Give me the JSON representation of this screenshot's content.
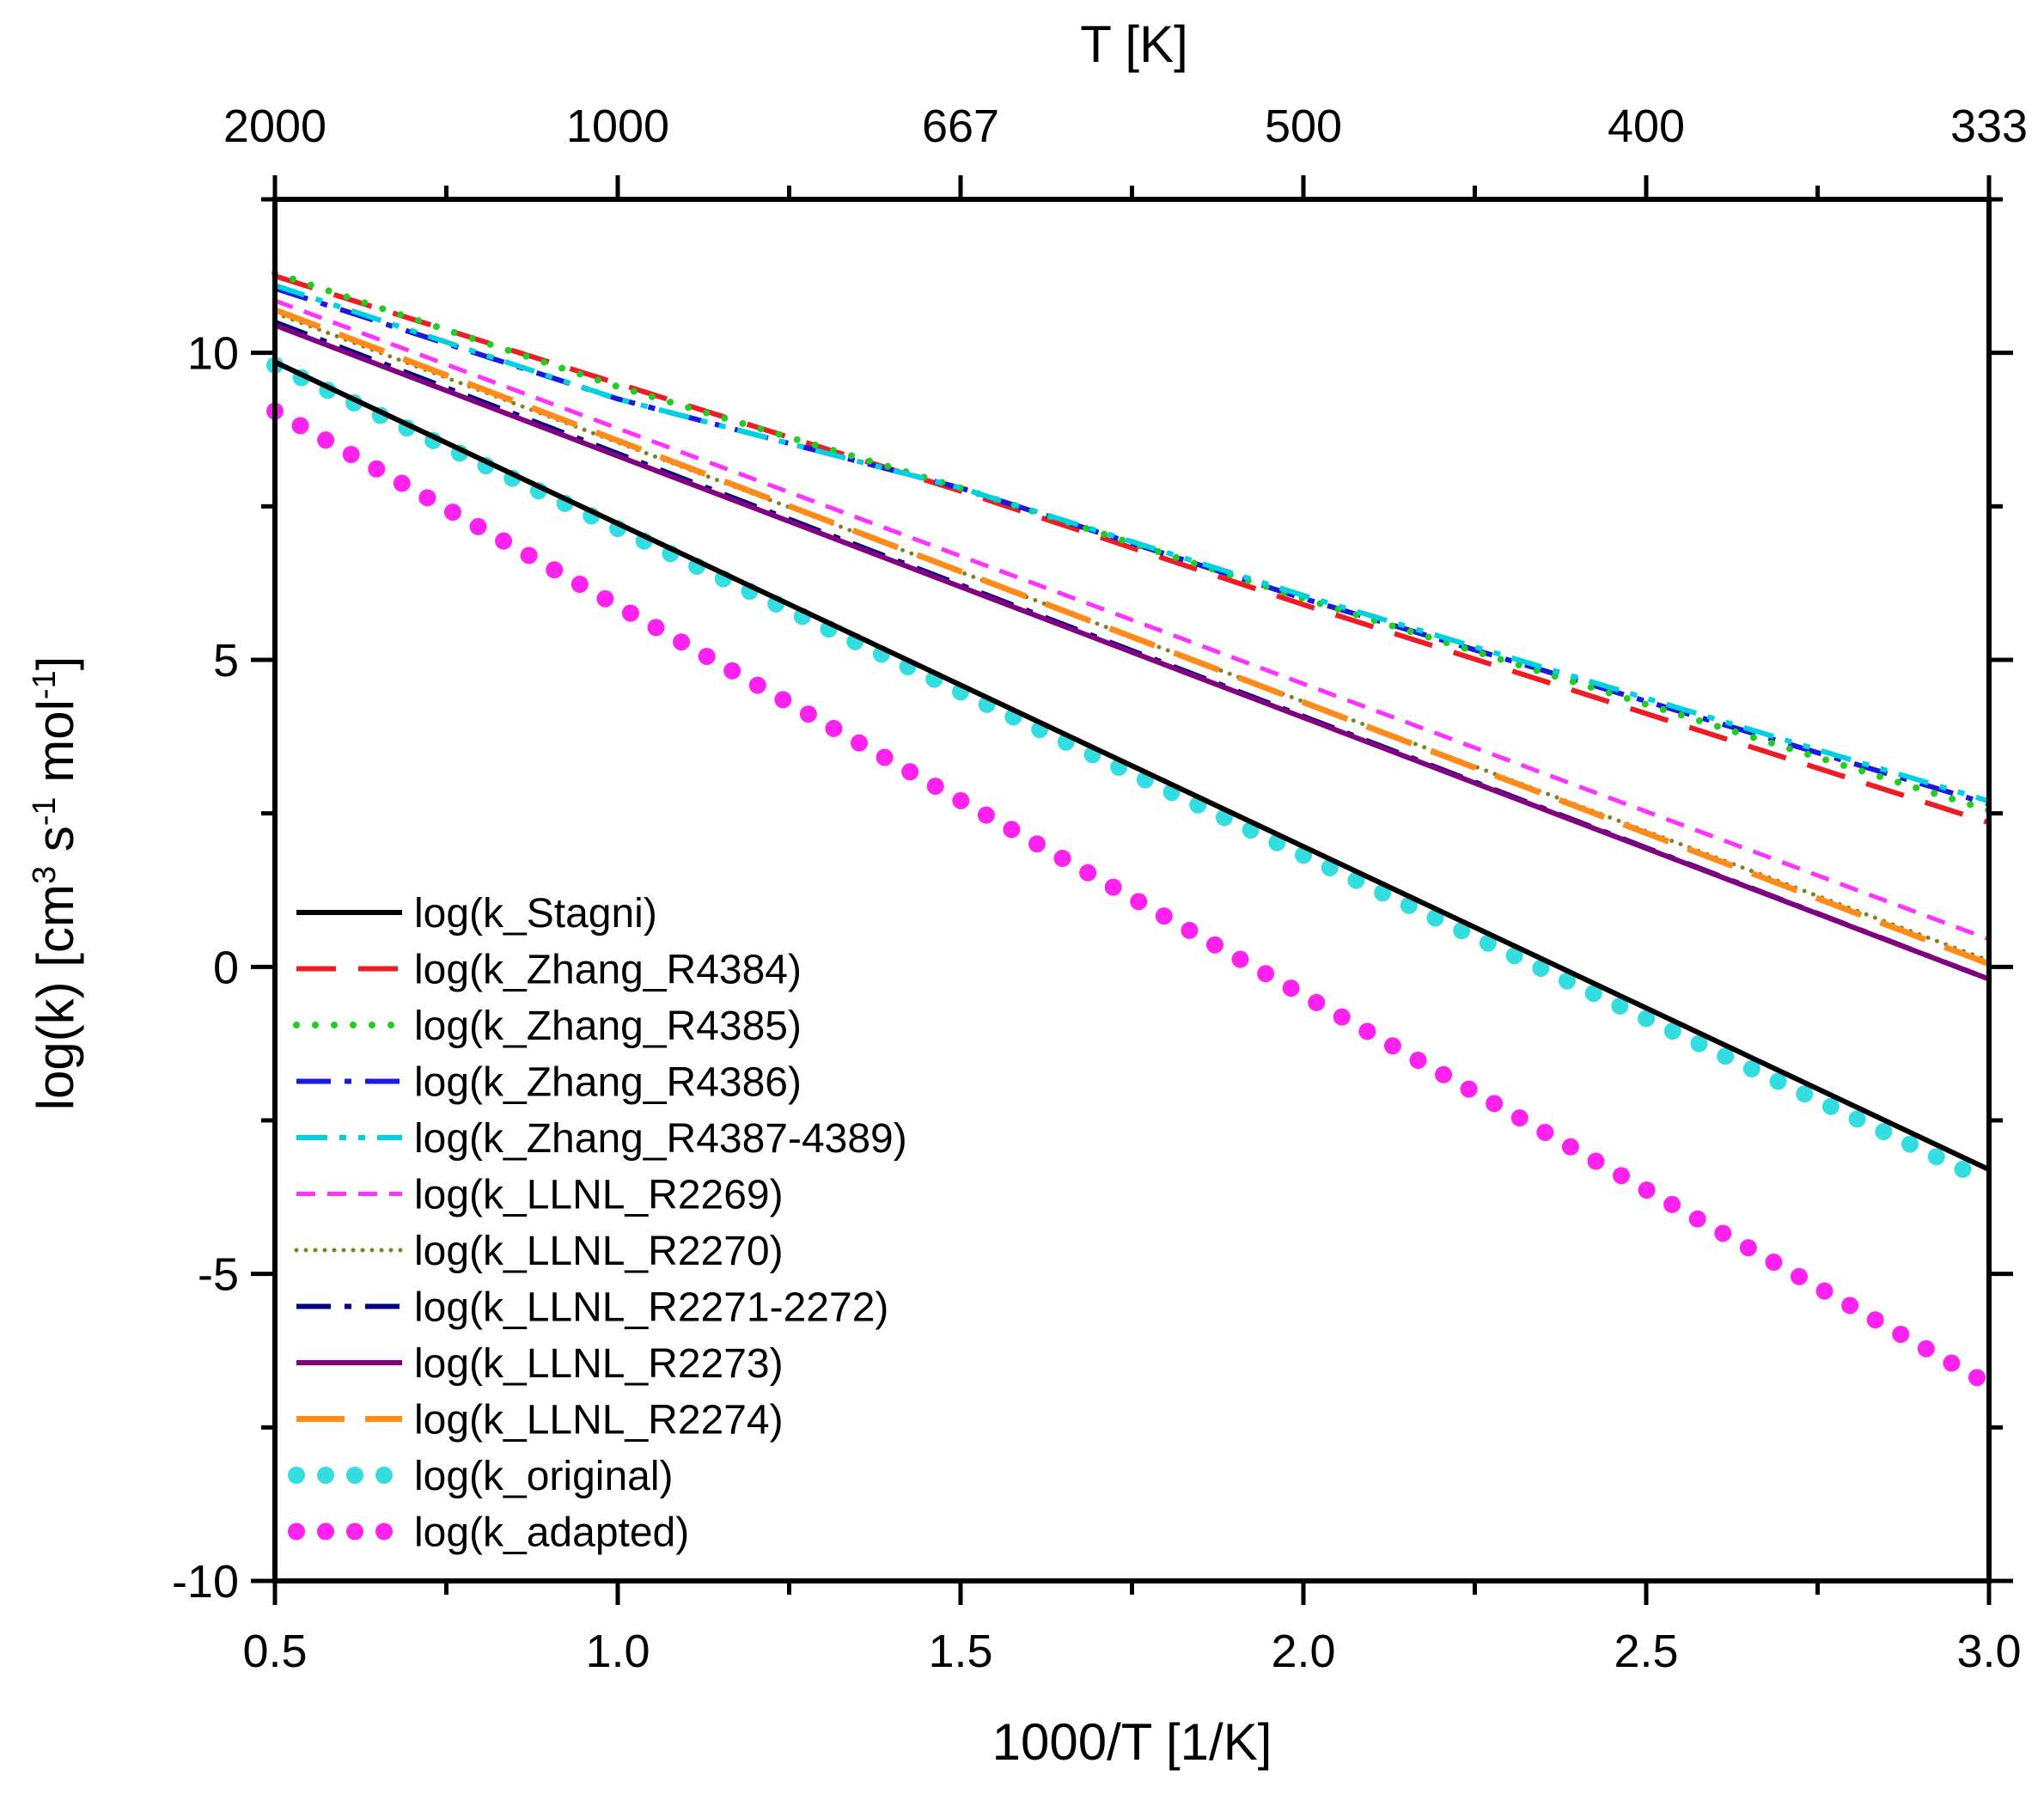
{
  "chart_data": {
    "type": "line",
    "title": "",
    "xlabel": "1000/T [1/K]",
    "ylabel": "log(k) [cm³ s⁻¹ mol⁻¹]",
    "ylabel_parts": {
      "base": "log(k) [cm",
      "exp1": "3",
      "mid1": " s",
      "exp2": "-1",
      "mid2": " mol",
      "exp3": "-1",
      "end": "]"
    },
    "top_xlabel": "T [K]",
    "xlim": [
      0.5,
      3.0
    ],
    "ylim": [
      -10,
      12.5
    ],
    "x_ticks": [
      0.5,
      1.0,
      1.5,
      2.0,
      2.5,
      3.0
    ],
    "x_tick_labels": [
      "0.5",
      "1.0",
      "1.5",
      "2.0",
      "2.5",
      "3.0"
    ],
    "y_ticks": [
      -10,
      -5,
      0,
      5,
      10
    ],
    "y_tick_labels": [
      "-10",
      "-5",
      "0",
      "5",
      "10"
    ],
    "top_ticks": [
      0.5,
      1.0,
      1.5,
      2.0,
      2.5,
      3.0
    ],
    "top_tick_labels": [
      "2000",
      "1000",
      "667",
      "500",
      "400",
      "333"
    ],
    "grid": false,
    "legend_position": "lower-left",
    "series": [
      {
        "name": "log(k_Stagni)",
        "color": "#000000",
        "style": "solid",
        "x": [
          0.5,
          3.0
        ],
        "y": [
          9.85,
          -3.3
        ]
      },
      {
        "name": "log(k_Zhang_R4384)",
        "color": "#ee1c24",
        "style": "dash",
        "x": [
          0.5,
          1.5,
          2.0,
          3.0
        ],
        "y": [
          11.25,
          7.75,
          5.9,
          2.35
        ]
      },
      {
        "name": "log(k_Zhang_R4385)",
        "color": "#22cc22",
        "style": "dot",
        "x": [
          0.5,
          1.0,
          1.5,
          2.0,
          3.0
        ],
        "y": [
          11.3,
          9.45,
          7.8,
          6.0,
          2.55
        ]
      },
      {
        "name": "log(k_Zhang_R4386)",
        "color": "#1a1adc",
        "style": "dashdot",
        "x": [
          0.5,
          1.0,
          1.5,
          2.0,
          3.0
        ],
        "y": [
          11.05,
          9.25,
          7.8,
          6.0,
          2.65
        ]
      },
      {
        "name": "log(k_Zhang_R4387-4389)",
        "color": "#00d0e0",
        "style": "dashdotdot",
        "x": [
          0.5,
          1.0,
          1.5,
          2.0,
          3.0
        ],
        "y": [
          11.1,
          9.25,
          7.8,
          6.05,
          2.7
        ]
      },
      {
        "name": "log(k_LLNL_R2269)",
        "color": "#ff33ff",
        "style": "shortdash",
        "x": [
          0.5,
          3.0
        ],
        "y": [
          10.85,
          0.45
        ]
      },
      {
        "name": "log(k_LLNL_R2270)",
        "color": "#808020",
        "style": "shortdot",
        "x": [
          0.5,
          3.0
        ],
        "y": [
          10.65,
          0.1
        ]
      },
      {
        "name": "log(k_LLNL_R2271-2272)",
        "color": "#000080",
        "style": "dashdot",
        "x": [
          0.5,
          3.0
        ],
        "y": [
          10.5,
          -0.2
        ]
      },
      {
        "name": "log(k_LLNL_R2273)",
        "color": "#800080",
        "style": "solid",
        "x": [
          0.5,
          3.0
        ],
        "y": [
          10.45,
          -0.2
        ]
      },
      {
        "name": "log(k_LLNL_R2274)",
        "color": "#ff8c1a",
        "style": "longdash",
        "x": [
          0.5,
          3.0
        ],
        "y": [
          10.7,
          0.05
        ]
      },
      {
        "name": "log(k_original)",
        "color": "#33dde0",
        "style": "bigdot",
        "x": [
          0.5,
          3.0
        ],
        "y": [
          9.8,
          -3.5
        ]
      },
      {
        "name": "log(k_adapted)",
        "color": "#ff22ee",
        "style": "bigdot",
        "x": [
          0.5,
          3.0
        ],
        "y": [
          9.05,
          -6.8
        ]
      }
    ]
  }
}
